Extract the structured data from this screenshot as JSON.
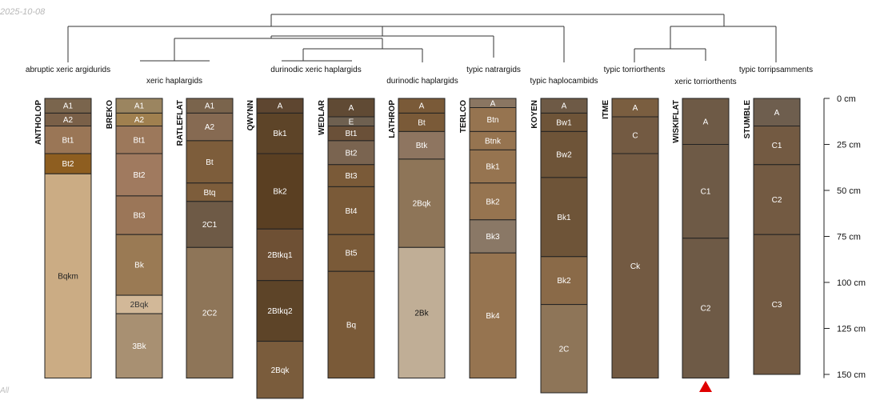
{
  "date_label": "2025-10-08",
  "corner_label": "All",
  "depth_scale": {
    "unit": "cm",
    "ticks": [
      0,
      25,
      50,
      75,
      100,
      125,
      150
    ],
    "labels": [
      "0 cm",
      "25 cm",
      "50 cm",
      "75 cm",
      "100 cm",
      "125 cm",
      "150 cm"
    ]
  },
  "taxa": [
    "abruptic xeric argidurids",
    "xeric haplargids",
    "durinodic xeric haplargids",
    "durinodic haplargids",
    "typic natrargids",
    "typic haplocambids",
    "typic torriorthents",
    "xeric torriorthents",
    "typic torripsamments"
  ],
  "profiles": [
    {
      "name": "ANTHOLOP",
      "horizons": [
        {
          "name": "A1",
          "top": 0,
          "bottom": 8,
          "color": "#7a654d",
          "text": "#ffffff"
        },
        {
          "name": "A2",
          "top": 8,
          "bottom": 15,
          "color": "#7a6048",
          "text": "#ffffff"
        },
        {
          "name": "Bt1",
          "top": 15,
          "bottom": 30,
          "color": "#9a7656",
          "text": "#ffffff"
        },
        {
          "name": "Bt2",
          "top": 30,
          "bottom": 41,
          "color": "#8e5e20",
          "text": "#ffffff"
        },
        {
          "name": "Bqkm",
          "top": 41,
          "bottom": 152,
          "color": "#cbac84",
          "text": "#222222"
        }
      ]
    },
    {
      "name": "BREKO",
      "horizons": [
        {
          "name": "A1",
          "top": 0,
          "bottom": 8,
          "color": "#9b8560",
          "text": "#ffffff"
        },
        {
          "name": "A2",
          "top": 8,
          "bottom": 15,
          "color": "#a0804f",
          "text": "#ffffff"
        },
        {
          "name": "Bt1",
          "top": 15,
          "bottom": 30,
          "color": "#9c785b",
          "text": "#ffffff"
        },
        {
          "name": "Bt2",
          "top": 30,
          "bottom": 53,
          "color": "#a07a5f",
          "text": "#ffffff"
        },
        {
          "name": "Bt3",
          "top": 53,
          "bottom": 74,
          "color": "#9b7658",
          "text": "#ffffff"
        },
        {
          "name": "Bk",
          "top": 74,
          "bottom": 107,
          "color": "#9a7a54",
          "text": "#ffffff"
        },
        {
          "name": "2Bqk",
          "top": 107,
          "bottom": 117,
          "color": "#d2b898",
          "text": "#333333"
        },
        {
          "name": "3Bk",
          "top": 117,
          "bottom": 152,
          "color": "#a89072",
          "text": "#ffffff"
        }
      ]
    },
    {
      "name": "RATLEFLAT",
      "horizons": [
        {
          "name": "A1",
          "top": 0,
          "bottom": 8,
          "color": "#7a644c",
          "text": "#ffffff"
        },
        {
          "name": "A2",
          "top": 8,
          "bottom": 23,
          "color": "#866a52",
          "text": "#ffffff"
        },
        {
          "name": "Bt",
          "top": 23,
          "bottom": 46,
          "color": "#7d5d3b",
          "text": "#ffffff"
        },
        {
          "name": "Btq",
          "top": 46,
          "bottom": 56,
          "color": "#7d5d3b",
          "text": "#ffffff"
        },
        {
          "name": "2C1",
          "top": 56,
          "bottom": 81,
          "color": "#6e5a46",
          "text": "#ffffff"
        },
        {
          "name": "2C2",
          "top": 81,
          "bottom": 152,
          "color": "#8e7558",
          "text": "#ffffff"
        }
      ]
    },
    {
      "name": "QWYNN",
      "horizons": [
        {
          "name": "A",
          "top": 0,
          "bottom": 8,
          "color": "#5e4630",
          "text": "#ffffff"
        },
        {
          "name": "Bk1",
          "top": 8,
          "bottom": 30,
          "color": "#5d4428",
          "text": "#ffffff"
        },
        {
          "name": "Bk2",
          "top": 30,
          "bottom": 71,
          "color": "#5a3f22",
          "text": "#ffffff"
        },
        {
          "name": "2Btkq1",
          "top": 71,
          "bottom": 99,
          "color": "#6e5034",
          "text": "#ffffff"
        },
        {
          "name": "2Btkq2",
          "top": 99,
          "bottom": 132,
          "color": "#5d4428",
          "text": "#ffffff"
        },
        {
          "name": "2Bqk",
          "top": 132,
          "bottom": 163,
          "color": "#7a5c3c",
          "text": "#ffffff"
        }
      ]
    },
    {
      "name": "WEDLAR",
      "horizons": [
        {
          "name": "A",
          "top": 0,
          "bottom": 10,
          "color": "#604a34",
          "text": "#ffffff"
        },
        {
          "name": "E",
          "top": 10,
          "bottom": 15,
          "color": "#6e6050",
          "text": "#ffffff"
        },
        {
          "name": "Bt1",
          "top": 15,
          "bottom": 23,
          "color": "#6a5038",
          "text": "#ffffff"
        },
        {
          "name": "Bt2",
          "top": 23,
          "bottom": 36,
          "color": "#7a6450",
          "text": "#ffffff"
        },
        {
          "name": "Bt3",
          "top": 36,
          "bottom": 48,
          "color": "#7a5a38",
          "text": "#ffffff"
        },
        {
          "name": "Bt4",
          "top": 48,
          "bottom": 74,
          "color": "#7a5a38",
          "text": "#ffffff"
        },
        {
          "name": "Bt5",
          "top": 74,
          "bottom": 94,
          "color": "#7a5a38",
          "text": "#ffffff"
        },
        {
          "name": "Bq",
          "top": 94,
          "bottom": 152,
          "color": "#7a5a38",
          "text": "#ffffff"
        }
      ]
    },
    {
      "name": "LATHROP",
      "horizons": [
        {
          "name": "A",
          "top": 0,
          "bottom": 8,
          "color": "#7a5a38",
          "text": "#ffffff"
        },
        {
          "name": "Bt",
          "top": 8,
          "bottom": 18,
          "color": "#7a5a38",
          "text": "#ffffff"
        },
        {
          "name": "Btk",
          "top": 18,
          "bottom": 33,
          "color": "#8e7560",
          "text": "#ffffff"
        },
        {
          "name": "2Bqk",
          "top": 33,
          "bottom": 81,
          "color": "#8e7558",
          "text": "#ffffff"
        },
        {
          "name": "2Bk",
          "top": 81,
          "bottom": 152,
          "color": "#c0ae96",
          "text": "#111111"
        }
      ]
    },
    {
      "name": "TERLCO",
      "horizons": [
        {
          "name": "A",
          "top": 0,
          "bottom": 5,
          "color": "#8a7662",
          "text": "#ffffff"
        },
        {
          "name": "Btn",
          "top": 5,
          "bottom": 18,
          "color": "#967450",
          "text": "#ffffff"
        },
        {
          "name": "Btnk",
          "top": 18,
          "bottom": 28,
          "color": "#967450",
          "text": "#ffffff"
        },
        {
          "name": "Bk1",
          "top": 28,
          "bottom": 46,
          "color": "#967450",
          "text": "#ffffff"
        },
        {
          "name": "Bk2",
          "top": 46,
          "bottom": 66,
          "color": "#967450",
          "text": "#ffffff"
        },
        {
          "name": "Bk3",
          "top": 66,
          "bottom": 84,
          "color": "#8a7866",
          "text": "#ffffff"
        },
        {
          "name": "Bk4",
          "top": 84,
          "bottom": 152,
          "color": "#967450",
          "text": "#ffffff"
        }
      ]
    },
    {
      "name": "KOYEN",
      "horizons": [
        {
          "name": "A",
          "top": 0,
          "bottom": 8,
          "color": "#6e5a46",
          "text": "#ffffff"
        },
        {
          "name": "Bw1",
          "top": 8,
          "bottom": 18,
          "color": "#6e5438",
          "text": "#ffffff"
        },
        {
          "name": "Bw2",
          "top": 18,
          "bottom": 43,
          "color": "#6e5438",
          "text": "#ffffff"
        },
        {
          "name": "Bk1",
          "top": 43,
          "bottom": 86,
          "color": "#6e5438",
          "text": "#ffffff"
        },
        {
          "name": "Bk2",
          "top": 86,
          "bottom": 112,
          "color": "#8a6a48",
          "text": "#ffffff"
        },
        {
          "name": "2C",
          "top": 112,
          "bottom": 160,
          "color": "#8e7558",
          "text": "#ffffff"
        }
      ]
    },
    {
      "name": "ITME",
      "horizons": [
        {
          "name": "A",
          "top": 0,
          "bottom": 10,
          "color": "#7a5e40",
          "text": "#ffffff"
        },
        {
          "name": "C",
          "top": 10,
          "bottom": 30,
          "color": "#735a42",
          "text": "#ffffff"
        },
        {
          "name": "Ck",
          "top": 30,
          "bottom": 152,
          "color": "#735a42",
          "text": "#ffffff"
        }
      ]
    },
    {
      "name": "WISKIFLAT",
      "horizons": [
        {
          "name": "A",
          "top": 0,
          "bottom": 25,
          "color": "#6e5a46",
          "text": "#ffffff"
        },
        {
          "name": "C1",
          "top": 25,
          "bottom": 76,
          "color": "#6e5a46",
          "text": "#ffffff"
        },
        {
          "name": "C2",
          "top": 76,
          "bottom": 152,
          "color": "#6e5a46",
          "text": "#ffffff"
        }
      ]
    },
    {
      "name": "STUMBLE",
      "horizons": [
        {
          "name": "A",
          "top": 0,
          "bottom": 15,
          "color": "#6e5e4e",
          "text": "#ffffff"
        },
        {
          "name": "C1",
          "top": 15,
          "bottom": 36,
          "color": "#735a42",
          "text": "#ffffff"
        },
        {
          "name": "C2",
          "top": 36,
          "bottom": 74,
          "color": "#735a42",
          "text": "#ffffff"
        },
        {
          "name": "C3",
          "top": 74,
          "bottom": 150,
          "color": "#735a42",
          "text": "#ffffff"
        }
      ]
    }
  ],
  "marker": {
    "profile": "WISKIFLAT",
    "shape": "triangle-up",
    "color": "#e00000"
  }
}
